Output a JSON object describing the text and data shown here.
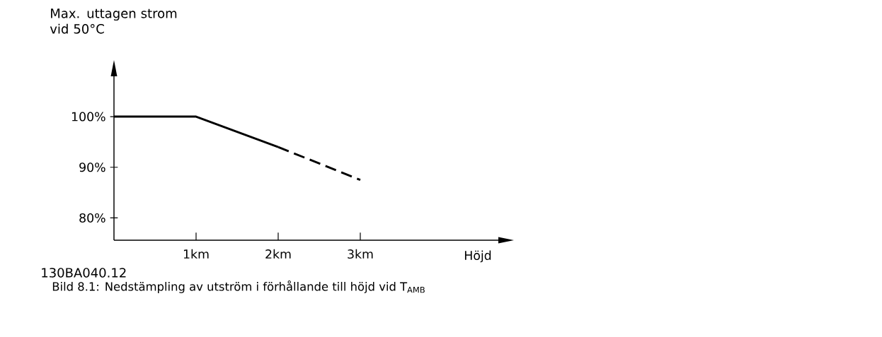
{
  "chart_data": {
    "type": "line",
    "ylabel": "Max. uttagen strom vid 50°C",
    "xlabel": "Höjd",
    "annotations": [
      "130BA040.12",
      "Bild 8.1: Nedstämpling av utström i förhållande till höjd vid T$_{AMB}$"
    ],
    "series": [
      {
        "color": "#000000",
        "line_style": "solid",
        "x": [
          0,
          1,
          2
        ],
        "values": [
          100,
          100,
          94
        ]
      },
      {
        "color": "#000000",
        "line_style": "dashed",
        "x": [
          2,
          3
        ],
        "values": [
          94,
          87.5
        ]
      }
    ],
    "xlim": [
      0,
      4.69
    ],
    "ylim": [
      75.6,
      108.1
    ],
    "xticks": [
      {
        "value": 1,
        "label": "1km"
      },
      {
        "value": 2,
        "label": "2km"
      },
      {
        "value": 3,
        "label": "3km"
      }
    ],
    "yticks": [
      {
        "value": 80,
        "label": "80%"
      },
      {
        "value": 90,
        "label": "90%"
      },
      {
        "value": 100,
        "label": "100%"
      }
    ]
  }
}
